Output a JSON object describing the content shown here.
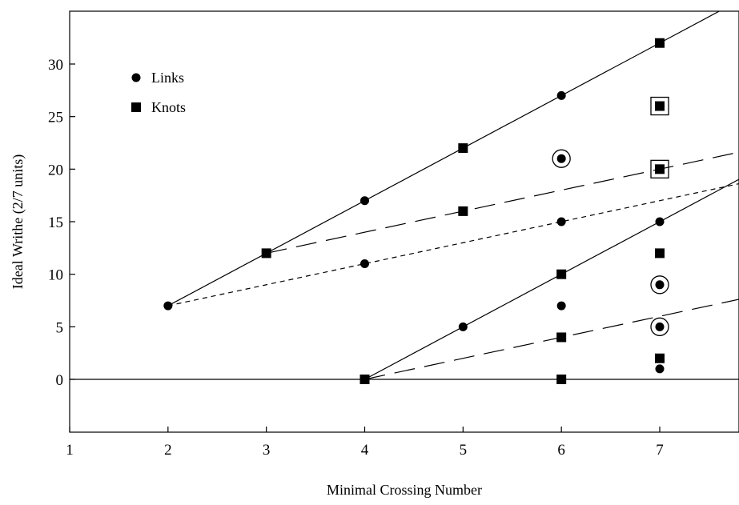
{
  "chart_data": {
    "type": "scatter",
    "xlabel": "Minimal Crossing Number",
    "ylabel": "Ideal Writhe (2/7 units)",
    "xlim": [
      1,
      7.8
    ],
    "ylim": [
      -5,
      35
    ],
    "xticks": [
      1,
      2,
      3,
      4,
      5,
      6,
      7
    ],
    "yticks": [
      0,
      5,
      10,
      15,
      20,
      25,
      30
    ],
    "grid": false,
    "legend_position": "top-left",
    "legend": [
      {
        "label": "Links",
        "marker": "circle"
      },
      {
        "label": "Knots",
        "marker": "square"
      }
    ],
    "series": [
      {
        "name": "Links",
        "marker": "circle",
        "points": [
          {
            "x": 2,
            "y": 7
          },
          {
            "x": 4,
            "y": 17
          },
          {
            "x": 4,
            "y": 11
          },
          {
            "x": 5,
            "y": 5
          },
          {
            "x": 6,
            "y": 27
          },
          {
            "x": 6,
            "y": 21,
            "ringed": true
          },
          {
            "x": 6,
            "y": 15
          },
          {
            "x": 6,
            "y": 7
          },
          {
            "x": 7,
            "y": 15
          },
          {
            "x": 7,
            "y": 9,
            "ringed": true
          },
          {
            "x": 7,
            "y": 5,
            "ringed": true
          },
          {
            "x": 7,
            "y": 1
          }
        ]
      },
      {
        "name": "Knots",
        "marker": "square",
        "points": [
          {
            "x": 3,
            "y": 12
          },
          {
            "x": 4,
            "y": 0
          },
          {
            "x": 5,
            "y": 22
          },
          {
            "x": 5,
            "y": 16
          },
          {
            "x": 6,
            "y": 10
          },
          {
            "x": 6,
            "y": 4
          },
          {
            "x": 6,
            "y": 0
          },
          {
            "x": 7,
            "y": 32
          },
          {
            "x": 7,
            "y": 26,
            "boxed": true
          },
          {
            "x": 7,
            "y": 20,
            "boxed": true
          },
          {
            "x": 7,
            "y": 12
          },
          {
            "x": 7,
            "y": 2
          }
        ]
      }
    ],
    "reference_lines": [
      {
        "style": "solid",
        "from": [
          2,
          7
        ],
        "to": [
          8,
          37
        ]
      },
      {
        "style": "long-dash",
        "from": [
          3,
          12
        ],
        "to": [
          8,
          22
        ]
      },
      {
        "style": "short-dash",
        "from": [
          2,
          7
        ],
        "to": [
          8,
          19
        ]
      },
      {
        "style": "solid",
        "from": [
          4,
          0
        ],
        "to": [
          8,
          20
        ]
      },
      {
        "style": "long-dash",
        "from": [
          4,
          0
        ],
        "to": [
          8,
          8
        ]
      },
      {
        "style": "solid",
        "from": [
          1,
          0
        ],
        "to": [
          8,
          0
        ]
      }
    ]
  }
}
